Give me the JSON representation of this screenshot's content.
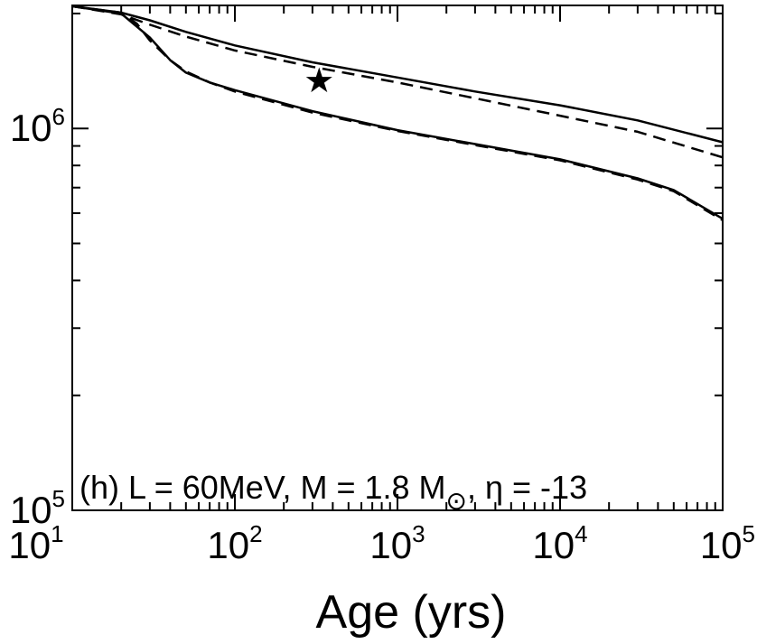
{
  "chart_data": {
    "type": "line",
    "title": "",
    "xlabel": "Age (yrs)",
    "ylabel": "",
    "x_scale": "log",
    "y_scale": "log",
    "xlim": [
      10,
      100000
    ],
    "ylim": [
      100000,
      2100000
    ],
    "x_ticks": [
      {
        "base": "10",
        "exp": "1",
        "value": 10
      },
      {
        "base": "10",
        "exp": "2",
        "value": 100
      },
      {
        "base": "10",
        "exp": "3",
        "value": 1000
      },
      {
        "base": "10",
        "exp": "4",
        "value": 10000
      },
      {
        "base": "10",
        "exp": "5",
        "value": 100000
      }
    ],
    "y_ticks": [
      {
        "base": "10",
        "exp": "5",
        "value": 100000
      },
      {
        "base": "10",
        "exp": "6",
        "value": 1000000
      }
    ],
    "annotation": {
      "prefix": "(h) L = 60MeV, M = 1.8 M",
      "sun_symbol": "⊙",
      "suffix": ", η = -13"
    },
    "series": [
      {
        "name": "upper-solid",
        "style": "solid",
        "x": [
          10,
          20,
          30,
          50,
          100,
          300,
          1000,
          3000,
          10000,
          30000,
          100000
        ],
        "y": [
          2090000,
          2010000,
          1920000,
          1790000,
          1650000,
          1490000,
          1360000,
          1250000,
          1150000,
          1050000,
          920000
        ]
      },
      {
        "name": "upper-dashed",
        "style": "dashed",
        "x": [
          10,
          20,
          30,
          50,
          100,
          300,
          1000,
          3000,
          10000,
          30000,
          100000
        ],
        "y": [
          2090000,
          1990000,
          1870000,
          1740000,
          1600000,
          1450000,
          1320000,
          1200000,
          1080000,
          980000,
          840000
        ]
      },
      {
        "name": "lower-solid",
        "style": "solid",
        "x": [
          10,
          20,
          30,
          40,
          50,
          70,
          100,
          300,
          1000,
          3000,
          10000,
          30000,
          50000,
          100000
        ],
        "y": [
          2090000,
          2000000,
          1730000,
          1510000,
          1400000,
          1320000,
          1260000,
          1110000,
          990000,
          910000,
          830000,
          740000,
          690000,
          580000
        ]
      },
      {
        "name": "lower-dashed",
        "style": "dashed",
        "x": [
          10,
          20,
          25,
          30,
          40,
          50,
          70,
          100,
          300,
          1000,
          3000,
          10000,
          30000,
          50000,
          100000
        ],
        "y": [
          2090000,
          2010000,
          1880000,
          1700000,
          1510000,
          1410000,
          1320000,
          1250000,
          1100000,
          985000,
          905000,
          825000,
          735000,
          685000,
          575000
        ]
      }
    ],
    "markers": [
      {
        "name": "observed-star",
        "symbol": "★",
        "x": 330,
        "y": 1330000
      }
    ]
  }
}
